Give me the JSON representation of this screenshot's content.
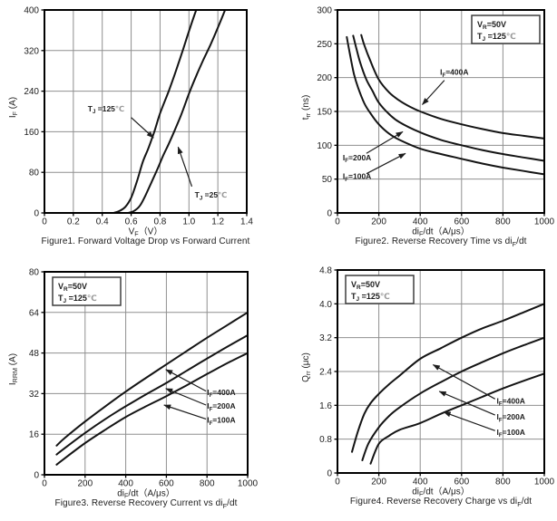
{
  "style": {
    "background": "#ffffff",
    "curve_color": "#141414",
    "grid_color": "#8f8f8f",
    "axis_color": "#000000",
    "text_color": "#1d1d1d",
    "celsius_color": "#9a9a9a",
    "box_border_color": "#3d3d3d"
  },
  "chart_data": [
    {
      "id": "figure1",
      "type": "line",
      "caption": "Figure1. Forward Voltage Drop vs Forward Current",
      "xlabel": "V~F~（V）",
      "ylabel": "I~F~ (A)",
      "xlim": [
        0,
        1.4
      ],
      "ylim": [
        0,
        400
      ],
      "xticks": [
        0,
        0.2,
        0.4,
        0.6,
        0.8,
        1.0,
        1.2,
        1.4
      ],
      "xtick_labels": [
        "0",
        "0.2",
        "0.4",
        "0.6",
        "0.8",
        "1.0",
        "1.2",
        "1.4"
      ],
      "yticks": [
        0,
        80,
        160,
        240,
        320,
        400
      ],
      "ytick_labels": [
        "0",
        "80",
        "160",
        "240",
        "320",
        "400"
      ],
      "grid": true,
      "series": [
        {
          "name": "T~J~ =125℃",
          "points": [
            [
              0.48,
              0
            ],
            [
              0.52,
              4
            ],
            [
              0.56,
              12
            ],
            [
              0.6,
              30
            ],
            [
              0.64,
              62
            ],
            [
              0.68,
              100
            ],
            [
              0.72,
              128
            ],
            [
              0.76,
              160
            ],
            [
              0.8,
              196
            ],
            [
              0.86,
              240
            ],
            [
              0.9,
              272
            ],
            [
              0.95,
              314
            ],
            [
              1.0,
              358
            ],
            [
              1.05,
              400
            ]
          ]
        },
        {
          "name": "T~J~ =25℃",
          "points": [
            [
              0.58,
              0
            ],
            [
              0.62,
              4
            ],
            [
              0.66,
              14
            ],
            [
              0.7,
              35
            ],
            [
              0.74,
              60
            ],
            [
              0.78,
              85
            ],
            [
              0.82,
              112
            ],
            [
              0.86,
              136
            ],
            [
              0.9,
              162
            ],
            [
              0.95,
              196
            ],
            [
              1.0,
              235
            ],
            [
              1.05,
              270
            ],
            [
              1.1,
              302
            ],
            [
              1.15,
              332
            ],
            [
              1.2,
              365
            ],
            [
              1.25,
              400
            ]
          ]
        }
      ],
      "annotations": [
        {
          "text": "T~J~ =125℃",
          "x": 0.3,
          "y": 200,
          "arrow": [
            0.6,
            188,
            0.755,
            148
          ]
        },
        {
          "text": "T~J~ =25℃",
          "x": 1.04,
          "y": 30,
          "arrow": [
            1.02,
            52,
            0.925,
            130
          ]
        }
      ]
    },
    {
      "id": "figure2",
      "type": "line",
      "caption": "Figure2. Reverse Recovery Time vs di~F~/dt",
      "xlabel": "di~F~/dt（A/μs）",
      "ylabel": "t~rr~ (ns)",
      "xlim": [
        0,
        1000
      ],
      "ylim": [
        0,
        300
      ],
      "xticks": [
        0,
        200,
        400,
        600,
        800,
        1000
      ],
      "xtick_labels": [
        "0",
        "200",
        "400",
        "600",
        "800",
        "1000"
      ],
      "yticks": [
        0,
        50,
        100,
        150,
        200,
        250,
        300
      ],
      "ytick_labels": [
        "0",
        "50",
        "100",
        "150",
        "200",
        "250",
        "300"
      ],
      "grid": true,
      "condition_box": {
        "position": "top-right",
        "lines": [
          "V~R~=50V",
          "T~J~ =125℃"
        ]
      },
      "series": [
        {
          "name": "I~F~=400A",
          "points": [
            [
              115,
              263
            ],
            [
              130,
              248
            ],
            [
              160,
              224
            ],
            [
              200,
              197
            ],
            [
              250,
              178
            ],
            [
              300,
              166
            ],
            [
              350,
              157
            ],
            [
              400,
              150
            ],
            [
              500,
              139
            ],
            [
              600,
              131
            ],
            [
              700,
              124
            ],
            [
              800,
              118
            ],
            [
              900,
              114
            ],
            [
              1000,
              110
            ]
          ]
        },
        {
          "name": "I~F~=200A",
          "points": [
            [
              76,
              262
            ],
            [
              90,
              245
            ],
            [
              110,
              222
            ],
            [
              140,
              197
            ],
            [
              170,
              180
            ],
            [
              200,
              163
            ],
            [
              250,
              146
            ],
            [
              300,
              134
            ],
            [
              400,
              119
            ],
            [
              500,
              108
            ],
            [
              600,
              100
            ],
            [
              700,
              93
            ],
            [
              800,
              87
            ],
            [
              900,
              82
            ],
            [
              1000,
              77
            ]
          ]
        },
        {
          "name": "I~F~=100A",
          "points": [
            [
              45,
              260
            ],
            [
              60,
              235
            ],
            [
              80,
              205
            ],
            [
              100,
              185
            ],
            [
              130,
              162
            ],
            [
              160,
              147
            ],
            [
              200,
              131
            ],
            [
              250,
              117
            ],
            [
              300,
              108
            ],
            [
              400,
              95
            ],
            [
              500,
              87
            ],
            [
              600,
              80
            ],
            [
              700,
              73
            ],
            [
              800,
              67
            ],
            [
              900,
              62
            ],
            [
              1000,
              57
            ]
          ]
        }
      ],
      "annotations": [
        {
          "text": "I~F~=400A",
          "x": 496,
          "y": 204,
          "arrow": [
            517,
            196,
            410,
            160
          ]
        },
        {
          "text": "I~F~=200A",
          "x": 26,
          "y": 78,
          "arrow": [
            140,
            88,
            316,
            120
          ]
        },
        {
          "text": "I~F~=100A",
          "x": 26,
          "y": 50,
          "arrow": [
            140,
            58,
            329,
            88
          ]
        }
      ]
    },
    {
      "id": "figure3",
      "type": "line",
      "caption": "Figure3. Reverse Recovery Current vs di~F~/dt",
      "xlabel": "di~F~/dt（A/μs）",
      "ylabel": "I~RRM~ (A)",
      "xlim": [
        0,
        1000
      ],
      "ylim": [
        0,
        80
      ],
      "xticks": [
        0,
        200,
        400,
        600,
        800,
        1000
      ],
      "xtick_labels": [
        "0",
        "200",
        "400",
        "600",
        "800",
        "1000"
      ],
      "yticks": [
        0,
        16,
        32,
        48,
        64,
        80
      ],
      "ytick_labels": [
        "0",
        "16",
        "32",
        "48",
        "64",
        "80"
      ],
      "grid": true,
      "condition_box": {
        "position": "top-left",
        "lines": [
          "V~R~=50V",
          "T~J~ =125℃"
        ]
      },
      "series": [
        {
          "name": "I~F~=400A",
          "points": [
            [
              60,
              11.5
            ],
            [
              100,
              14.5
            ],
            [
              200,
              21
            ],
            [
              300,
              27
            ],
            [
              400,
              32.8
            ],
            [
              500,
              38.2
            ],
            [
              600,
              43.5
            ],
            [
              700,
              48.8
            ],
            [
              800,
              54
            ],
            [
              900,
              59
            ],
            [
              1000,
              64
            ]
          ]
        },
        {
          "name": "I~F~=200A",
          "points": [
            [
              60,
              8
            ],
            [
              100,
              10.5
            ],
            [
              200,
              16.5
            ],
            [
              300,
              22
            ],
            [
              400,
              27
            ],
            [
              500,
              31.7
            ],
            [
              600,
              36.2
            ],
            [
              700,
              41
            ],
            [
              800,
              45.8
            ],
            [
              900,
              50.5
            ],
            [
              1000,
              55
            ]
          ]
        },
        {
          "name": "I~F~=100A",
          "points": [
            [
              60,
              4
            ],
            [
              100,
              6.5
            ],
            [
              200,
              12.5
            ],
            [
              300,
              17.8
            ],
            [
              400,
              22.8
            ],
            [
              500,
              27
            ],
            [
              600,
              31
            ],
            [
              700,
              35.3
            ],
            [
              800,
              39.7
            ],
            [
              900,
              44
            ],
            [
              1000,
              48
            ]
          ]
        }
      ],
      "annotations": [
        {
          "text": "I~F~=400A",
          "x": 800,
          "y": 31.5,
          "arrow": [
            795,
            33,
            597,
            41.5
          ]
        },
        {
          "text": "I~F~=200A",
          "x": 800,
          "y": 26,
          "arrow": [
            795,
            27.5,
            597,
            34
          ]
        },
        {
          "text": "I~F~=100A",
          "x": 800,
          "y": 20.5,
          "arrow": [
            795,
            22,
            588,
            27.5
          ]
        }
      ]
    },
    {
      "id": "figure4",
      "type": "line",
      "caption": "Figure4. Reverse Recovery Charge vs di~F~/dt",
      "xlabel": "di~F~/dt（A/μs）",
      "ylabel": "Q~rr~ (μc)",
      "xlim": [
        0,
        1000
      ],
      "ylim": [
        0,
        4.8
      ],
      "xticks": [
        0,
        200,
        400,
        600,
        800,
        1000
      ],
      "xtick_labels": [
        "0",
        "200",
        "400",
        "600",
        "800",
        "1000"
      ],
      "yticks": [
        0,
        0.8,
        1.6,
        2.4,
        3.2,
        4.0,
        4.8
      ],
      "ytick_labels": [
        "0",
        "0.8",
        "1.6",
        "2.4",
        "3.2",
        "4.0",
        "4.8"
      ],
      "grid": true,
      "condition_box": {
        "position": "top-left",
        "lines": [
          "V~R~=50V",
          "T~J~ =125℃"
        ]
      },
      "series": [
        {
          "name": "I~F~=400A",
          "points": [
            [
              70,
              0.5
            ],
            [
              100,
              1.0
            ],
            [
              130,
              1.4
            ],
            [
              160,
              1.65
            ],
            [
              200,
              1.87
            ],
            [
              250,
              2.1
            ],
            [
              300,
              2.3
            ],
            [
              400,
              2.7
            ],
            [
              500,
              2.95
            ],
            [
              600,
              3.2
            ],
            [
              700,
              3.42
            ],
            [
              800,
              3.6
            ],
            [
              900,
              3.8
            ],
            [
              1000,
              4.0
            ]
          ]
        },
        {
          "name": "I~F~=200A",
          "points": [
            [
              120,
              0.3
            ],
            [
              150,
              0.7
            ],
            [
              200,
              1.08
            ],
            [
              250,
              1.35
            ],
            [
              300,
              1.55
            ],
            [
              400,
              1.88
            ],
            [
              500,
              2.15
            ],
            [
              600,
              2.4
            ],
            [
              700,
              2.62
            ],
            [
              800,
              2.83
            ],
            [
              900,
              3.02
            ],
            [
              1000,
              3.2
            ]
          ]
        },
        {
          "name": "I~F~=100A",
          "points": [
            [
              160,
              0.22
            ],
            [
              200,
              0.69
            ],
            [
              250,
              0.88
            ],
            [
              300,
              1.02
            ],
            [
              400,
              1.18
            ],
            [
              500,
              1.4
            ],
            [
              600,
              1.6
            ],
            [
              700,
              1.8
            ],
            [
              800,
              2.0
            ],
            [
              900,
              2.18
            ],
            [
              1000,
              2.35
            ]
          ]
        }
      ],
      "annotations": [
        {
          "text": "I~F~=400A",
          "x": 770,
          "y": 1.64,
          "arrow": [
            762,
            1.75,
            462,
            2.56
          ]
        },
        {
          "text": "I~F~=200A",
          "x": 770,
          "y": 1.26,
          "arrow": [
            762,
            1.37,
            492,
            1.93
          ]
        },
        {
          "text": "I~F~=100A",
          "x": 770,
          "y": 0.9,
          "arrow": [
            762,
            1.0,
            514,
            1.44
          ]
        }
      ]
    }
  ]
}
